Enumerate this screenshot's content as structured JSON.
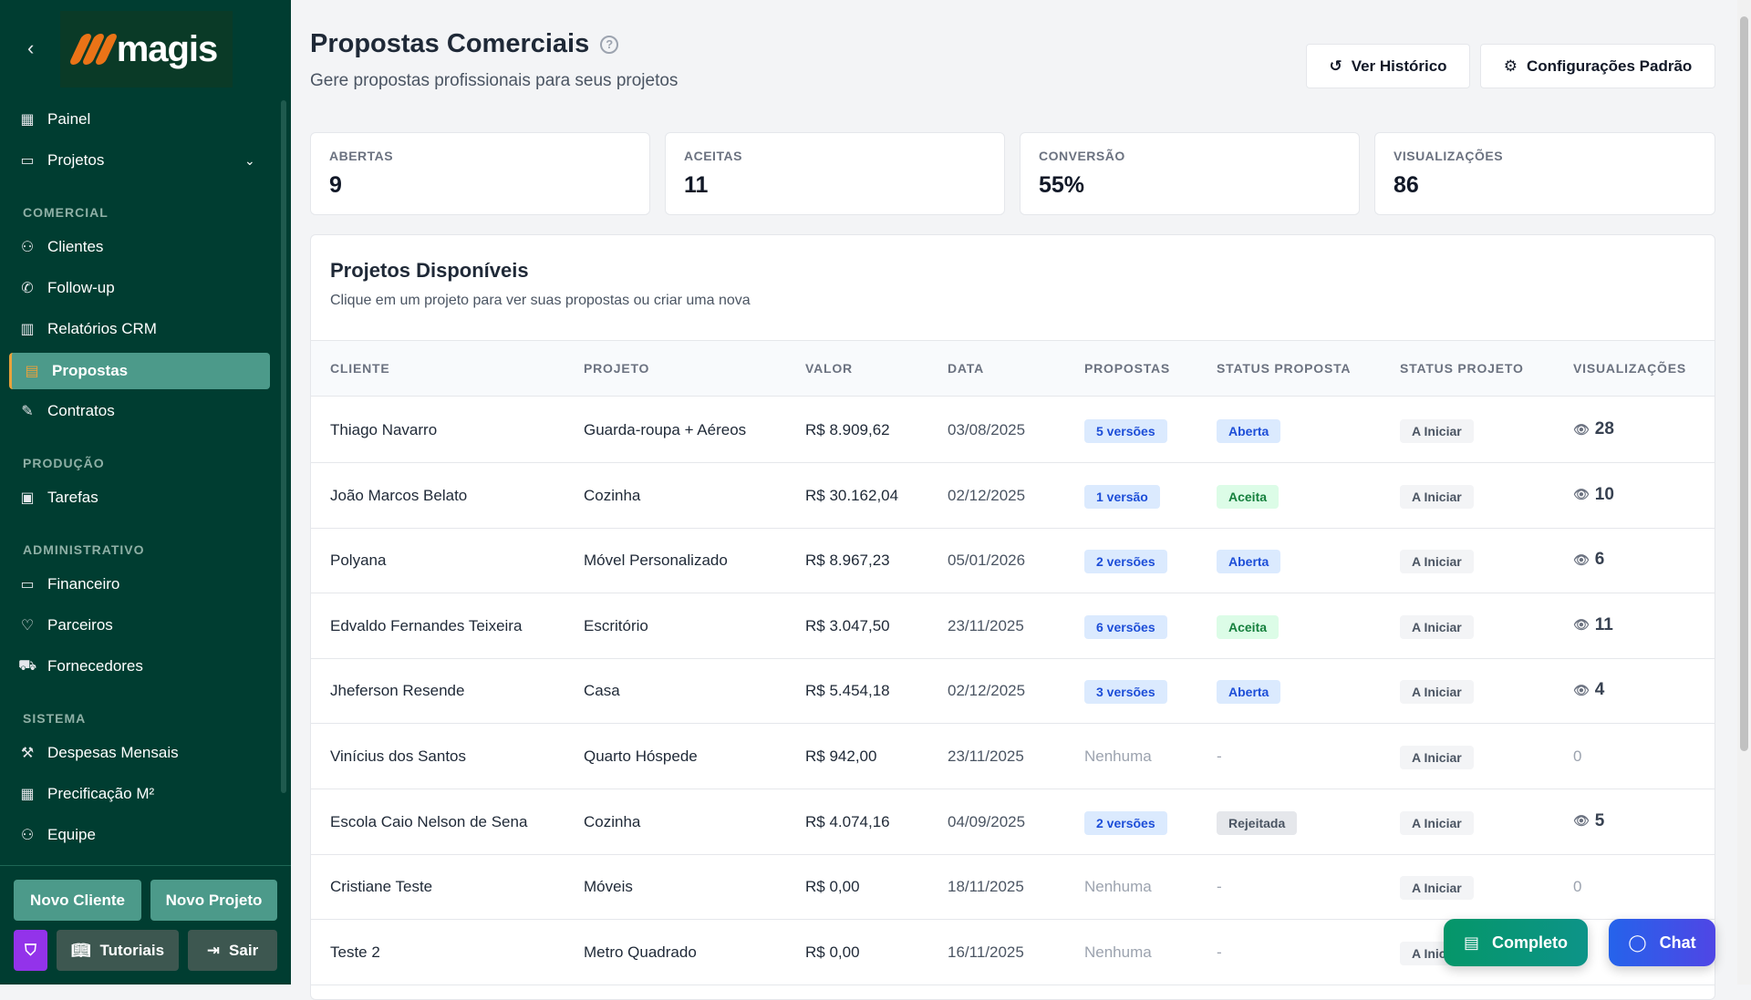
{
  "brand": {
    "name": "magis",
    "accent": "#ea7317"
  },
  "sidebar": {
    "items": [
      {
        "label": "Painel",
        "icon": "grid-icon"
      },
      {
        "label": "Projetos",
        "icon": "folder-icon"
      },
      {
        "label": "Clientes",
        "icon": "users-icon"
      },
      {
        "label": "Follow-up",
        "icon": "phone-icon"
      },
      {
        "label": "Relatórios CRM",
        "icon": "bar-chart-icon"
      },
      {
        "label": "Propostas",
        "icon": "document-icon"
      },
      {
        "label": "Contratos",
        "icon": "edit-file-icon"
      },
      {
        "label": "Tarefas",
        "icon": "clipboard-icon"
      },
      {
        "label": "Financeiro",
        "icon": "banknote-icon"
      },
      {
        "label": "Parceiros",
        "icon": "handshake-icon"
      },
      {
        "label": "Fornecedores",
        "icon": "truck-icon"
      },
      {
        "label": "Despesas Mensais",
        "icon": "wrench-icon"
      },
      {
        "label": "Precificação M²",
        "icon": "calculator-icon"
      },
      {
        "label": "Equipe",
        "icon": "user-icon"
      }
    ],
    "sections": [
      "COMERCIAL",
      "PRODUÇÃO",
      "ADMINISTRATIVO",
      "SISTEMA"
    ],
    "buttons": {
      "new_client": "Novo Cliente",
      "new_project": "Novo Projeto",
      "tutorials": "Tutoriais",
      "logout": "Sair"
    }
  },
  "header": {
    "title": "Propostas Comerciais",
    "subtitle": "Gere propostas profissionais para seus projetos",
    "history_label": "Ver Histórico",
    "settings_label": "Configurações Padrão"
  },
  "stats": [
    {
      "label": "ABERTAS",
      "value": "9"
    },
    {
      "label": "ACEITAS",
      "value": "11"
    },
    {
      "label": "CONVERSÃO",
      "value": "55%"
    },
    {
      "label": "VISUALIZAÇÕES",
      "value": "86"
    }
  ],
  "projects": {
    "title": "Projetos Disponíveis",
    "subtitle": "Clique em um projeto para ver suas propostas ou criar uma nova",
    "columns": [
      "CLIENTE",
      "PROJETO",
      "VALOR",
      "DATA",
      "PROPOSTAS",
      "STATUS PROPOSTA",
      "STATUS PROJETO",
      "VISUALIZAÇÕES"
    ],
    "rows": [
      {
        "cliente": "Thiago Navarro",
        "projeto": "Guarda-roupa + Aéreos",
        "valor": "R$ 8.909,62",
        "data": "03/08/2025",
        "propostas": "5 versões",
        "status_proposta": "Aberta",
        "status_projeto": "A Iniciar",
        "views": "28"
      },
      {
        "cliente": "João Marcos Belato",
        "projeto": "Cozinha",
        "valor": "R$ 30.162,04",
        "data": "02/12/2025",
        "propostas": "1 versão",
        "status_proposta": "Aceita",
        "status_projeto": "A Iniciar",
        "views": "10"
      },
      {
        "cliente": "Polyana",
        "projeto": "Móvel Personalizado",
        "valor": "R$ 8.967,23",
        "data": "05/01/2026",
        "propostas": "2 versões",
        "status_proposta": "Aberta",
        "status_projeto": "A Iniciar",
        "views": "6"
      },
      {
        "cliente": "Edvaldo Fernandes Teixeira",
        "projeto": "Escritório",
        "valor": "R$ 3.047,50",
        "data": "23/11/2025",
        "propostas": "6 versões",
        "status_proposta": "Aceita",
        "status_projeto": "A Iniciar",
        "views": "11"
      },
      {
        "cliente": "Jheferson Resende",
        "projeto": "Casa",
        "valor": "R$ 5.454,18",
        "data": "02/12/2025",
        "propostas": "3 versões",
        "status_proposta": "Aberta",
        "status_projeto": "A Iniciar",
        "views": "4"
      },
      {
        "cliente": "Vinícius dos Santos",
        "projeto": "Quarto Hóspede",
        "valor": "R$ 942,00",
        "data": "23/11/2025",
        "propostas": "Nenhuma",
        "status_proposta": "-",
        "status_projeto": "A Iniciar",
        "views": "0"
      },
      {
        "cliente": "Escola Caio Nelson de Sena",
        "projeto": "Cozinha",
        "valor": "R$ 4.074,16",
        "data": "04/09/2025",
        "propostas": "2 versões",
        "status_proposta": "Rejeitada",
        "status_projeto": "A Iniciar",
        "views": "5"
      },
      {
        "cliente": "Cristiane Teste",
        "projeto": "Móveis",
        "valor": "R$ 0,00",
        "data": "18/11/2025",
        "propostas": "Nenhuma",
        "status_proposta": "-",
        "status_projeto": "A Iniciar",
        "views": "0"
      },
      {
        "cliente": "Teste 2",
        "projeto": "Metro Quadrado",
        "valor": "R$ 0,00",
        "data": "16/11/2025",
        "propostas": "Nenhuma",
        "status_proposta": "-",
        "status_projeto": "A Iniciar",
        "views": ""
      }
    ]
  },
  "floating": {
    "complete_label": "Completo",
    "chat_label": "Chat"
  }
}
